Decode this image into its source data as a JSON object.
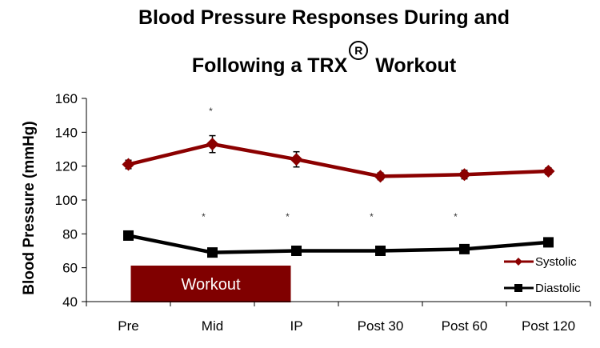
{
  "chart_data": {
    "type": "line",
    "title_line1": "Blood Pressure Responses During and",
    "title_line2_pre": "Following a TRX",
    "title_registered": "R",
    "title_line2_post": "Workout",
    "ylabel": "Blood Pressure (mmHg)",
    "xlabel": "",
    "ylim": [
      40,
      160
    ],
    "yticks": [
      "40",
      "60",
      "80",
      "100",
      "120",
      "140",
      "160"
    ],
    "categories": [
      "Pre",
      "Mid",
      "IP",
      "Post 30",
      "Post 60",
      "Post 120"
    ],
    "series": [
      {
        "name": "Systolic",
        "color": "#8B0000",
        "marker": "diamond",
        "values": [
          121,
          133,
          124,
          114,
          115,
          117
        ],
        "errors": [
          2.5,
          5,
          4.5,
          2,
          2.5,
          2
        ]
      },
      {
        "name": "Diastolic",
        "color": "#000000",
        "marker": "square",
        "values": [
          79,
          69,
          70,
          70,
          71,
          75
        ],
        "errors": [
          0,
          0,
          0,
          0,
          0,
          0
        ]
      }
    ],
    "significance_markers": [
      {
        "category": "Mid",
        "series": "Systolic",
        "label": "*"
      },
      {
        "category": "Mid",
        "series": "Diastolic",
        "label": "*"
      },
      {
        "category": "IP",
        "series": "Diastolic",
        "label": "*"
      },
      {
        "category": "Post 30",
        "series": "Diastolic",
        "label": "*"
      },
      {
        "category": "Post 60",
        "series": "Diastolic",
        "label": "*"
      }
    ],
    "annotation": {
      "label": "Workout",
      "from_category": "Pre",
      "to_category": "IP",
      "color": "#800000"
    },
    "legend": {
      "placement": "bottom-right"
    },
    "grid": false
  }
}
